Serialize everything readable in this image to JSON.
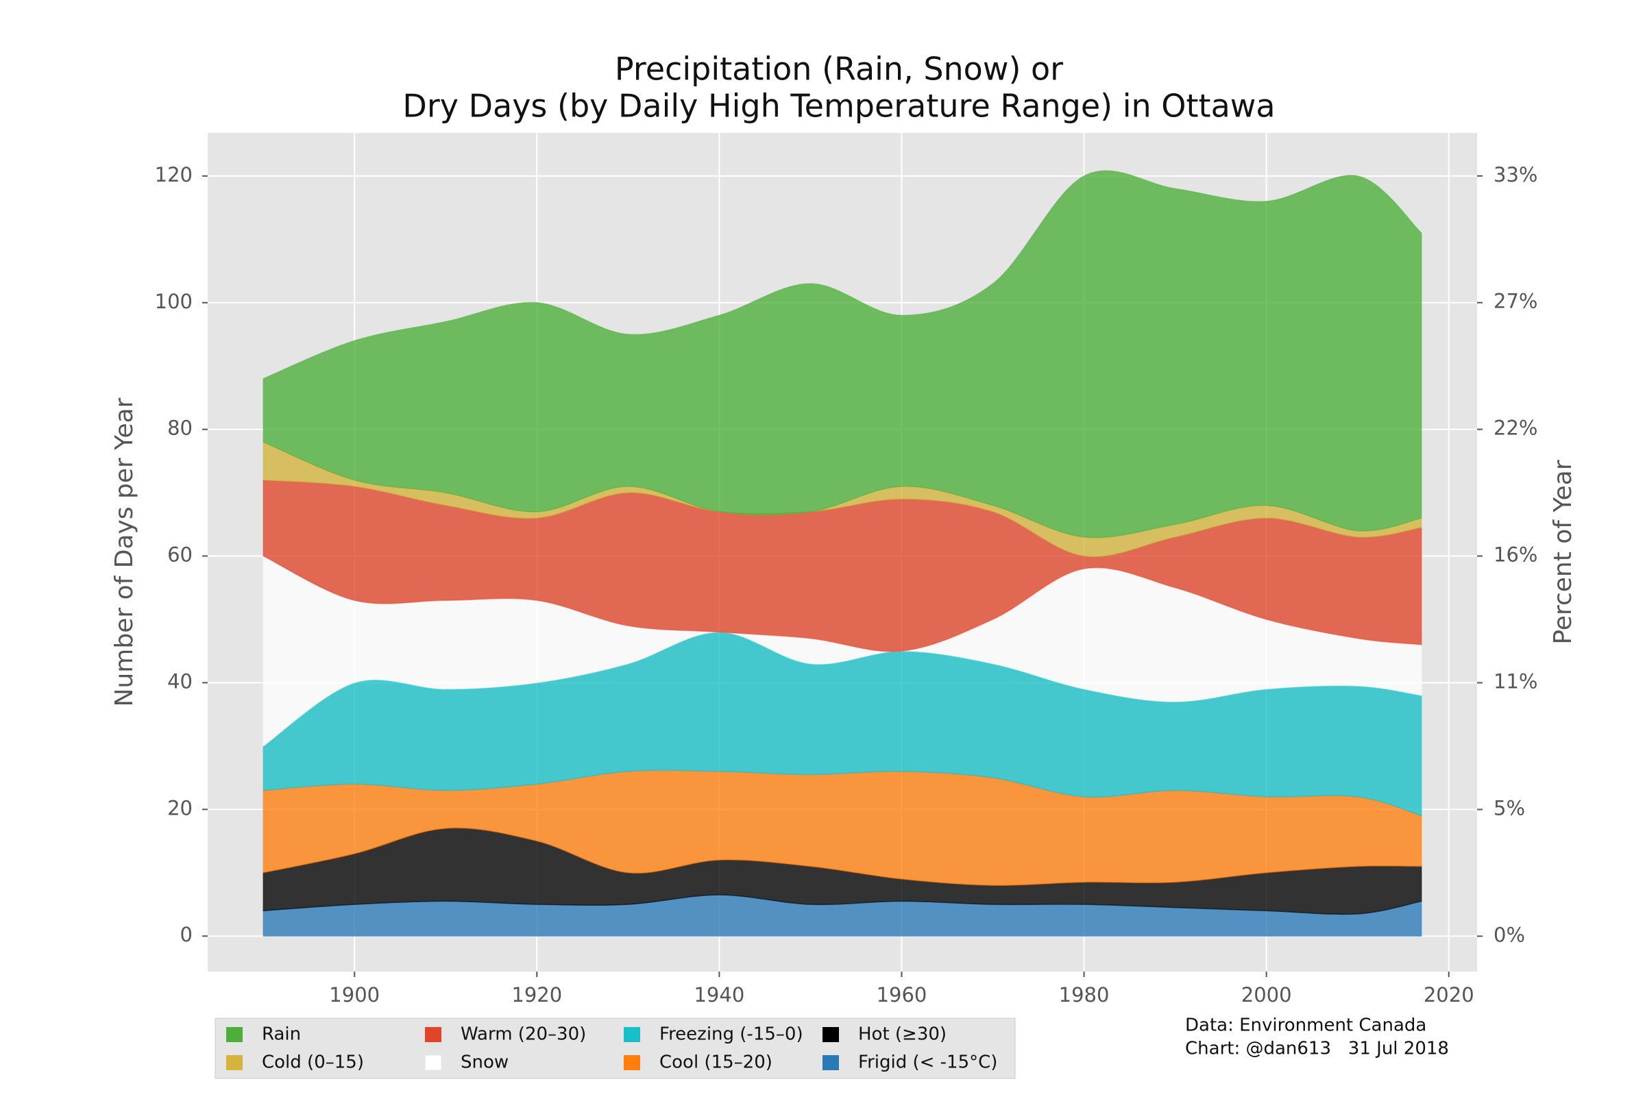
{
  "chart_data": {
    "type": "area",
    "title": [
      "Precipitation (Rain, Snow) or",
      "Dry Days (by Daily High Temperature Range) in Ottawa"
    ],
    "y_label": "Number of Days per Year",
    "y2_label": "Percent of Year",
    "annotations": [
      "Data: Environment Canada",
      "Chart: @dan613   31 Jul 2018"
    ],
    "x": [
      1890,
      1900,
      1910,
      1920,
      1930,
      1940,
      1950,
      1960,
      1970,
      1980,
      1990,
      2000,
      2010,
      2017
    ],
    "xlim": [
      1883.9,
      2023.1
    ],
    "xticks": [
      1900,
      1920,
      1940,
      1960,
      1980,
      2000,
      2020
    ],
    "ylim": [
      -5.6,
      126.8
    ],
    "yticks": [
      0,
      20,
      40,
      60,
      80,
      100,
      120
    ],
    "y2lim": [
      -1.53,
      34.74
    ],
    "y2ticks": [
      {
        "value": 0,
        "label": "0%"
      },
      {
        "value": 5.48,
        "label": "5%"
      },
      {
        "value": 10.96,
        "label": "11%"
      },
      {
        "value": 16.44,
        "label": "16%"
      },
      {
        "value": 21.92,
        "label": "22%"
      },
      {
        "value": 27.4,
        "label": "27%"
      },
      {
        "value": 32.88,
        "label": "33%"
      }
    ],
    "grid": true,
    "legend_position": "bottom-left",
    "series": [
      {
        "name": "Rain",
        "color": "#4daf3a",
        "values": [
          10,
          22,
          27,
          33,
          24,
          31,
          36,
          27,
          35,
          57,
          53,
          48,
          56,
          45
        ]
      },
      {
        "name": "Cold (0–15)",
        "color": "#d4b43c",
        "values": [
          6,
          1,
          2,
          1,
          1,
          0,
          0,
          2,
          1,
          3,
          2,
          2,
          1,
          1.5
        ]
      },
      {
        "name": "Warm (20–30)",
        "color": "#e0452a",
        "values": [
          12,
          18,
          15,
          13,
          21,
          19,
          20,
          24,
          17,
          2,
          8,
          16,
          16,
          18.5
        ]
      },
      {
        "name": "Snow",
        "color": "#ffffff",
        "values": [
          30,
          13,
          14,
          13,
          6,
          0,
          4,
          0,
          7,
          19,
          18,
          11,
          7.5,
          8
        ]
      },
      {
        "name": "Freezing (-15–0)",
        "color": "#17c0c8",
        "values": [
          7,
          16,
          16,
          16,
          17,
          22,
          17.5,
          19,
          18,
          17,
          14,
          17,
          17.5,
          19
        ]
      },
      {
        "name": "Cool (15–20)",
        "color": "#ff7f0e",
        "values": [
          13,
          11,
          6,
          9,
          16,
          14,
          14.5,
          17,
          17,
          13.5,
          14.5,
          12,
          11,
          8
        ]
      },
      {
        "name": "Hot (≥30)",
        "color": "#000000",
        "values": [
          6,
          8,
          11.5,
          10,
          5,
          5.5,
          6,
          3.5,
          3,
          3.5,
          4,
          6,
          7.5,
          5.5
        ]
      },
      {
        "name": "Frigid (< -15°C)",
        "color": "#2a7ab8",
        "values": [
          4,
          5,
          5.5,
          5,
          5,
          6.5,
          5,
          5.5,
          5,
          5,
          4.5,
          4,
          3.5,
          5.5
        ]
      }
    ]
  }
}
